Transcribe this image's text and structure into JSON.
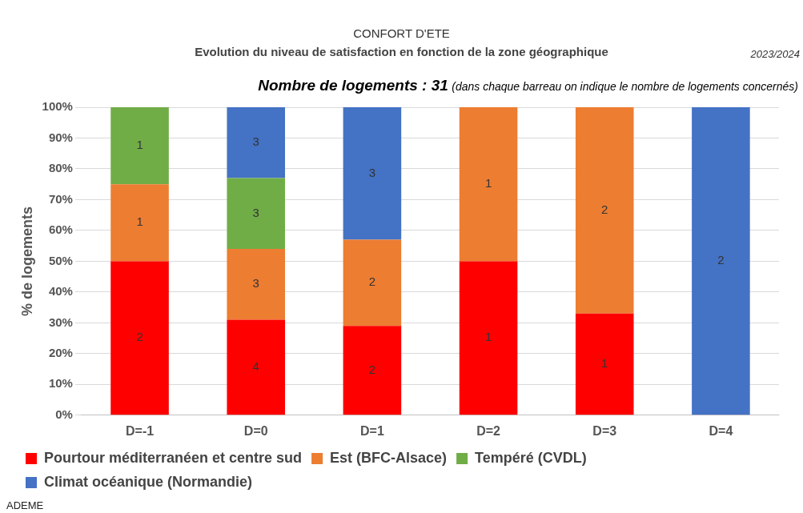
{
  "chart_data": {
    "type": "bar",
    "stacked": true,
    "title": "CONFORT D'ETE",
    "subtitle": "Evolution du niveau de satisfaction en fonction de la zone géographique",
    "annotations": [
      "2023/2024",
      "Nombre de logements : 31",
      "(dans chaque barreau on indique le nombre de logements concernés)",
      "ADEME",
      "2",
      "1",
      "1",
      "4",
      "3",
      "3",
      "3",
      "2",
      "2",
      "3",
      "1",
      "1",
      "1",
      "2",
      "2"
    ],
    "ylabel": "% de logements",
    "categories": [
      "D=-1",
      "D=0",
      "D=1",
      "D=2",
      "D=3",
      "D=4"
    ],
    "series": [
      {
        "name": "Pourtour méditerranéen et centre sud",
        "color": "#ff0000",
        "values": [
          50,
          31,
          29,
          50,
          33,
          null
        ]
      },
      {
        "name": "Est (BFC-Alsace)",
        "color": "#ed7d31",
        "values": [
          25,
          23,
          28,
          50,
          67,
          null
        ]
      },
      {
        "name": "Tempéré (CVDL)",
        "color": "#70ad47",
        "values": [
          25,
          23,
          null,
          null,
          null,
          null
        ]
      },
      {
        "name": "Climat océanique (Normandie)",
        "color": "#4472c4",
        "values": [
          null,
          23,
          43,
          null,
          null,
          100
        ]
      }
    ],
    "ylim": [
      0,
      100
    ],
    "yticks": [
      {
        "value": 0,
        "label": "0%"
      },
      {
        "value": 10,
        "label": "10%"
      },
      {
        "value": 20,
        "label": "20%"
      },
      {
        "value": 30,
        "label": "30%"
      },
      {
        "value": 40,
        "label": "40%"
      },
      {
        "value": 50,
        "label": "50%"
      },
      {
        "value": 60,
        "label": "60%"
      },
      {
        "value": 70,
        "label": "70%"
      },
      {
        "value": 80,
        "label": "80%"
      },
      {
        "value": 90,
        "label": "90%"
      },
      {
        "value": 100,
        "label": "100%"
      }
    ],
    "grid": "y",
    "legend": "bottom"
  }
}
